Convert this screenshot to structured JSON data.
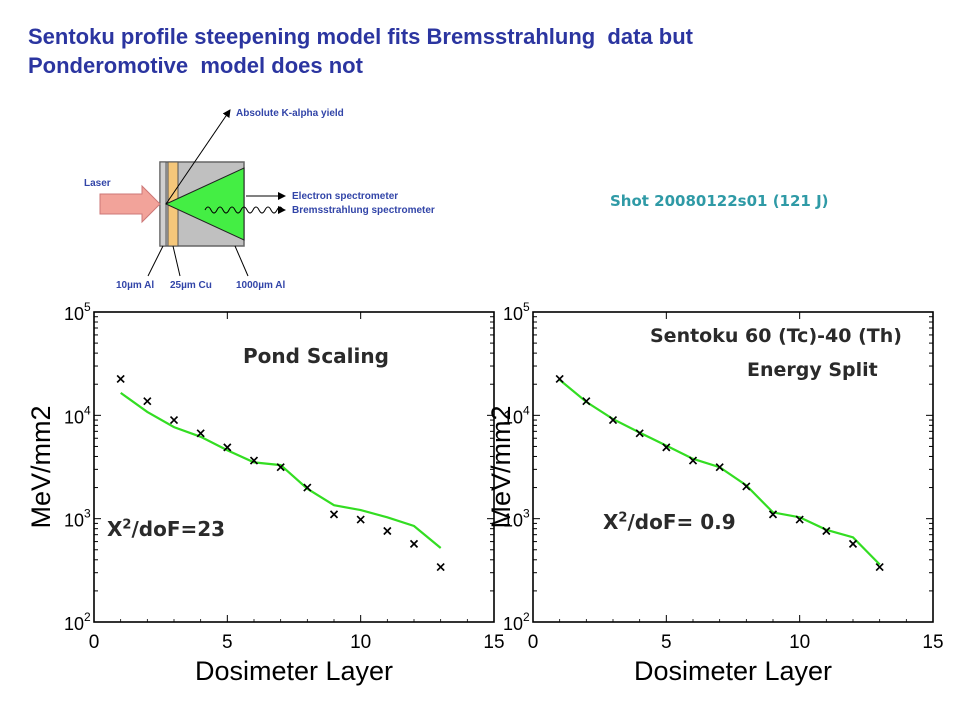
{
  "title_lines": [
    "Sentoku profile steepening model fits Bremsstrahlung  data but",
    "Ponderomotive  model does not"
  ],
  "shot_label": "Shot 20080122s01 (121 J)",
  "schematic": {
    "laser": "Laser",
    "kalpha": "Absolute K-alpha yield",
    "electron": "Electron spectrometer",
    "brems": "Bremsstrahlung spectrometer",
    "al10": "10µm Al",
    "cu25": "25µm Cu",
    "al1000": "1000µm Al"
  },
  "annotations": {
    "left_title": "Pond Scaling",
    "left_chi_prefix": "X",
    "left_chi_sup": "2",
    "left_chi_suffix": "/doF=23",
    "right_title_1": "Sentoku 60 (Tc)-40 (Th)",
    "right_title_2": "Energy Split",
    "right_chi_prefix": "X",
    "right_chi_sup": "2",
    "right_chi_suffix": "/doF= 0.9"
  },
  "colors": {
    "title": "#2b35a0",
    "shot": "#2f9aa6",
    "fit_line": "#33dd22",
    "cone": "#44ee44",
    "laser": "#f2a39a",
    "cu_layer": "#f5c77a",
    "target": "#c0c0c0"
  },
  "chart_data": [
    {
      "type": "scatter",
      "xlabel": "Dosimeter Layer",
      "ylabel": "MeV/mm2",
      "xlim": [
        0,
        15
      ],
      "ylim": [
        100,
        100000
      ],
      "yscale": "log",
      "x_ticks": [
        0,
        5,
        10,
        15
      ],
      "y_tick_labels": [
        {
          "base": "10",
          "exp": "5",
          "value": 100000
        },
        {
          "base": "10",
          "exp": "4",
          "value": 10000
        },
        {
          "base": "10",
          "exp": "3",
          "value": 1000
        },
        {
          "base": "10",
          "exp": "2",
          "value": 100
        }
      ],
      "series": [
        {
          "kind": "markers",
          "x": [
            1,
            2,
            3,
            4,
            5,
            6,
            7,
            8,
            9,
            10,
            11,
            12,
            13
          ],
          "y": [
            22500,
            13700,
            9000,
            6700,
            4900,
            3650,
            3150,
            2000,
            1100,
            980,
            760,
            570,
            340
          ]
        },
        {
          "kind": "line",
          "x": [
            1,
            2,
            3,
            4,
            5,
            6,
            7,
            8,
            9,
            10,
            11,
            12,
            13
          ],
          "y": [
            16500,
            10800,
            7700,
            6200,
            4600,
            3500,
            3300,
            1950,
            1350,
            1210,
            1030,
            850,
            520
          ]
        }
      ]
    },
    {
      "type": "scatter",
      "xlabel": "Dosimeter Layer",
      "ylabel": "MeV/mm2",
      "xlim": [
        0,
        15
      ],
      "ylim": [
        100,
        100000
      ],
      "yscale": "log",
      "x_ticks": [
        0,
        5,
        10,
        15
      ],
      "y_tick_labels": [
        {
          "base": "10",
          "exp": "5",
          "value": 100000
        },
        {
          "base": "10",
          "exp": "4",
          "value": 10000
        },
        {
          "base": "10",
          "exp": "3",
          "value": 1000
        },
        {
          "base": "10",
          "exp": "2",
          "value": 100
        }
      ],
      "series": [
        {
          "kind": "markers",
          "x": [
            1,
            2,
            3,
            4,
            5,
            6,
            7,
            8,
            9,
            10,
            11,
            12,
            13
          ],
          "y": [
            22500,
            13700,
            9000,
            6700,
            4900,
            3650,
            3150,
            2050,
            1100,
            980,
            760,
            570,
            340
          ]
        },
        {
          "kind": "line",
          "x": [
            1,
            2,
            3,
            4,
            5,
            6,
            7,
            8,
            9,
            10,
            11,
            12,
            13
          ],
          "y": [
            22000,
            13500,
            9200,
            6800,
            5100,
            3800,
            3150,
            2100,
            1150,
            1030,
            780,
            660,
            360
          ]
        }
      ]
    }
  ]
}
